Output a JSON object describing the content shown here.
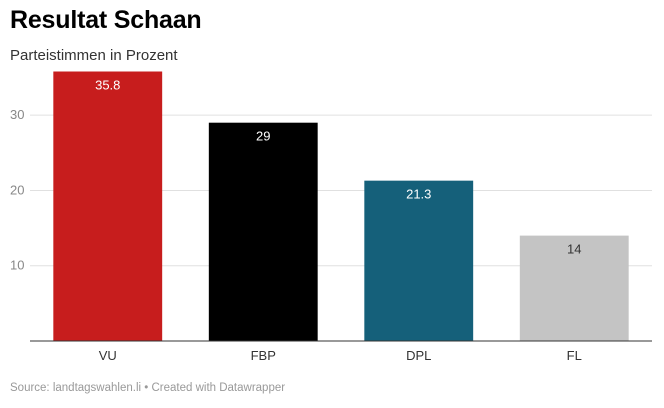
{
  "header": {
    "title": "Resultat Schaan",
    "subtitle": "Parteistimmen in Prozent"
  },
  "footer": {
    "source": "Source: landtagswahlen.li • Created with Datawrapper"
  },
  "chart_data": {
    "type": "bar",
    "title": "Resultat Schaan",
    "subtitle": "Parteistimmen in Prozent",
    "categories": [
      "VU",
      "FBP",
      "DPL",
      "FL"
    ],
    "values": [
      35.8,
      29,
      21.3,
      14
    ],
    "value_labels": [
      "35.8",
      "29",
      "21.3",
      "14"
    ],
    "colors": [
      "#c71d1d",
      "#000000",
      "#15607a",
      "#c4c4c4"
    ],
    "label_colors": [
      "#ffffff",
      "#ffffff",
      "#ffffff",
      "#333333"
    ],
    "ylim": [
      0,
      36
    ],
    "yticks": [
      10,
      20,
      30
    ],
    "grid": true,
    "xlabel": "",
    "ylabel": ""
  }
}
